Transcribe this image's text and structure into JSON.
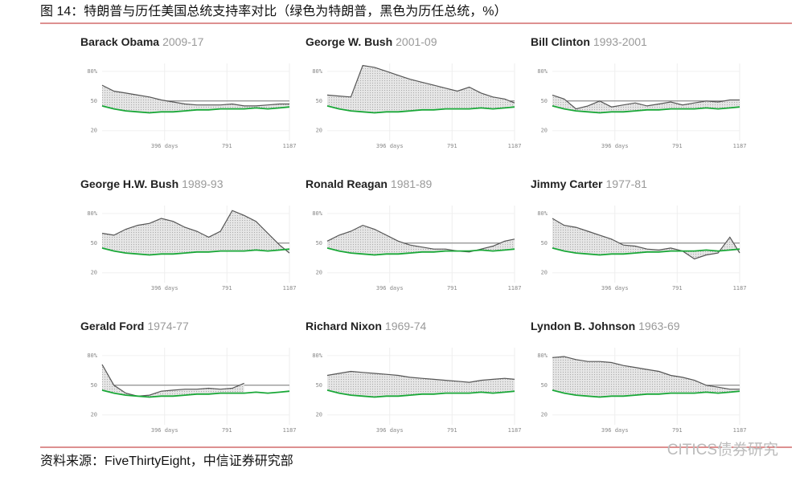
{
  "header": {
    "title": "图 14：特朗普与历任美国总统支持率对比（绿色为特朗普，黑色为历任总统，%）"
  },
  "source": "资料来源：FiveThirtyEight，中信证券研究部",
  "watermark": "CITICS债券研究",
  "chart_data": [
    {
      "type": "line",
      "title": "Barack Obama",
      "subtitle": "2009-17",
      "x": [
        0,
        75,
        150,
        225,
        300,
        375,
        450,
        525,
        600,
        675,
        750,
        825,
        900,
        975,
        1050,
        1125,
        1187
      ],
      "xlim": [
        0,
        1187
      ],
      "xticks": [
        {
          "value": 396,
          "label": "396 days"
        },
        791,
        1187
      ],
      "ylim": [
        10,
        88
      ],
      "yticks": [
        {
          "value": 80,
          "label": "80%"
        },
        50,
        20
      ],
      "hline": 50,
      "grid": true,
      "series": [
        {
          "color": "#555555",
          "values": [
            66,
            60,
            58,
            56,
            54,
            51,
            49,
            47,
            46,
            46,
            46,
            47,
            45,
            45,
            46,
            47,
            47
          ]
        },
        {
          "color": "#1aa838",
          "values": [
            45,
            42,
            40,
            39,
            38,
            39,
            39,
            40,
            41,
            41,
            42,
            42,
            42,
            43,
            42,
            43,
            44
          ]
        }
      ]
    },
    {
      "type": "line",
      "title": "George W. Bush",
      "subtitle": "2001-09",
      "x": [
        0,
        75,
        150,
        225,
        300,
        375,
        450,
        525,
        600,
        675,
        750,
        825,
        900,
        975,
        1050,
        1125,
        1187
      ],
      "xlim": [
        0,
        1187
      ],
      "xticks": [
        {
          "value": 396,
          "label": "396 days"
        },
        791,
        1187
      ],
      "ylim": [
        10,
        88
      ],
      "yticks": [
        {
          "value": 80,
          "label": "80%"
        },
        50,
        20
      ],
      "hline": 50,
      "grid": true,
      "series": [
        {
          "color": "#555555",
          "values": [
            56,
            55,
            54,
            86,
            84,
            80,
            76,
            72,
            69,
            66,
            63,
            60,
            64,
            58,
            54,
            52,
            48
          ]
        },
        {
          "color": "#1aa838",
          "values": [
            45,
            42,
            40,
            39,
            38,
            39,
            39,
            40,
            41,
            41,
            42,
            42,
            42,
            43,
            42,
            43,
            44
          ]
        }
      ]
    },
    {
      "type": "line",
      "title": "Bill Clinton",
      "subtitle": "1993-2001",
      "x": [
        0,
        75,
        150,
        225,
        300,
        375,
        450,
        525,
        600,
        675,
        750,
        825,
        900,
        975,
        1050,
        1125,
        1187
      ],
      "xlim": [
        0,
        1187
      ],
      "xticks": [
        {
          "value": 396,
          "label": "396 days"
        },
        791,
        1187
      ],
      "ylim": [
        10,
        88
      ],
      "yticks": [
        {
          "value": 80,
          "label": "80%"
        },
        50,
        20
      ],
      "hline": 50,
      "grid": true,
      "series": [
        {
          "color": "#555555",
          "values": [
            56,
            52,
            42,
            45,
            50,
            44,
            46,
            48,
            45,
            47,
            49,
            46,
            48,
            50,
            49,
            51,
            51
          ]
        },
        {
          "color": "#1aa838",
          "values": [
            45,
            42,
            40,
            39,
            38,
            39,
            39,
            40,
            41,
            41,
            42,
            42,
            42,
            43,
            42,
            43,
            44
          ]
        }
      ]
    },
    {
      "type": "line",
      "title": "George H.W. Bush",
      "subtitle": "1989-93",
      "x": [
        0,
        75,
        150,
        225,
        300,
        375,
        450,
        525,
        600,
        675,
        750,
        825,
        900,
        975,
        1050,
        1125,
        1187
      ],
      "xlim": [
        0,
        1187
      ],
      "xticks": [
        {
          "value": 396,
          "label": "396 days"
        },
        791,
        1187
      ],
      "ylim": [
        10,
        88
      ],
      "yticks": [
        {
          "value": 80,
          "label": "80%"
        },
        50,
        20
      ],
      "hline": 50,
      "grid": true,
      "series": [
        {
          "color": "#555555",
          "values": [
            60,
            58,
            64,
            68,
            70,
            75,
            72,
            66,
            62,
            56,
            62,
            83,
            78,
            72,
            60,
            48,
            40
          ]
        },
        {
          "color": "#1aa838",
          "values": [
            45,
            42,
            40,
            39,
            38,
            39,
            39,
            40,
            41,
            41,
            42,
            42,
            42,
            43,
            42,
            43,
            44
          ]
        }
      ]
    },
    {
      "type": "line",
      "title": "Ronald Reagan",
      "subtitle": "1981-89",
      "x": [
        0,
        75,
        150,
        225,
        300,
        375,
        450,
        525,
        600,
        675,
        750,
        825,
        900,
        975,
        1050,
        1125,
        1187
      ],
      "xlim": [
        0,
        1187
      ],
      "xticks": [
        {
          "value": 396,
          "label": "396 days"
        },
        791,
        1187
      ],
      "ylim": [
        10,
        88
      ],
      "yticks": [
        {
          "value": 80,
          "label": "80%"
        },
        50,
        20
      ],
      "hline": 50,
      "grid": true,
      "series": [
        {
          "color": "#555555",
          "values": [
            52,
            58,
            62,
            68,
            64,
            58,
            52,
            48,
            46,
            44,
            44,
            42,
            41,
            44,
            47,
            52,
            54
          ]
        },
        {
          "color": "#1aa838",
          "values": [
            45,
            42,
            40,
            39,
            38,
            39,
            39,
            40,
            41,
            41,
            42,
            42,
            42,
            43,
            42,
            43,
            44
          ]
        }
      ]
    },
    {
      "type": "line",
      "title": "Jimmy Carter",
      "subtitle": "1977-81",
      "x": [
        0,
        75,
        150,
        225,
        300,
        375,
        450,
        525,
        600,
        675,
        750,
        825,
        900,
        975,
        1050,
        1125,
        1187
      ],
      "xlim": [
        0,
        1187
      ],
      "xticks": [
        {
          "value": 396,
          "label": "396 days"
        },
        791,
        1187
      ],
      "ylim": [
        10,
        88
      ],
      "yticks": [
        {
          "value": 80,
          "label": "80%"
        },
        50,
        20
      ],
      "hline": 50,
      "grid": true,
      "series": [
        {
          "color": "#555555",
          "values": [
            75,
            68,
            66,
            62,
            58,
            54,
            48,
            47,
            44,
            43,
            45,
            42,
            34,
            38,
            40,
            56,
            40
          ]
        },
        {
          "color": "#1aa838",
          "values": [
            45,
            42,
            40,
            39,
            38,
            39,
            39,
            40,
            41,
            41,
            42,
            42,
            42,
            43,
            42,
            43,
            44
          ]
        }
      ]
    },
    {
      "type": "line",
      "title": "Gerald Ford",
      "subtitle": "1974-77",
      "x": [
        0,
        75,
        150,
        225,
        300,
        375,
        450,
        525,
        600,
        675,
        750,
        825,
        900,
        975,
        1050,
        1125,
        1187
      ],
      "xlim": [
        0,
        1187
      ],
      "xticks": [
        {
          "value": 396,
          "label": "396 days"
        },
        791,
        1187
      ],
      "ylim": [
        10,
        88
      ],
      "yticks": [
        {
          "value": 80,
          "label": "80%"
        },
        50,
        20
      ],
      "hline": 50,
      "grid": true,
      "series": [
        {
          "color": "#555555",
          "values": [
            71,
            50,
            42,
            39,
            40,
            44,
            45,
            46,
            46,
            47,
            46,
            47,
            52,
            null,
            null,
            null,
            null
          ]
        },
        {
          "color": "#1aa838",
          "values": [
            45,
            42,
            40,
            39,
            38,
            39,
            39,
            40,
            41,
            41,
            42,
            42,
            42,
            43,
            42,
            43,
            44
          ]
        }
      ]
    },
    {
      "type": "line",
      "title": "Richard Nixon",
      "subtitle": "1969-74",
      "x": [
        0,
        75,
        150,
        225,
        300,
        375,
        450,
        525,
        600,
        675,
        750,
        825,
        900,
        975,
        1050,
        1125,
        1187
      ],
      "xlim": [
        0,
        1187
      ],
      "xticks": [
        {
          "value": 396,
          "label": "396 days"
        },
        791,
        1187
      ],
      "ylim": [
        10,
        88
      ],
      "yticks": [
        {
          "value": 80,
          "label": "80%"
        },
        50,
        20
      ],
      "hline": 50,
      "grid": true,
      "series": [
        {
          "color": "#555555",
          "values": [
            60,
            62,
            64,
            63,
            62,
            61,
            60,
            58,
            57,
            56,
            55,
            54,
            53,
            55,
            56,
            57,
            56
          ]
        },
        {
          "color": "#1aa838",
          "values": [
            45,
            42,
            40,
            39,
            38,
            39,
            39,
            40,
            41,
            41,
            42,
            42,
            42,
            43,
            42,
            43,
            44
          ]
        }
      ]
    },
    {
      "type": "line",
      "title": "Lyndon B. Johnson",
      "subtitle": "1963-69",
      "x": [
        0,
        75,
        150,
        225,
        300,
        375,
        450,
        525,
        600,
        675,
        750,
        825,
        900,
        975,
        1050,
        1125,
        1187
      ],
      "xlim": [
        0,
        1187
      ],
      "xticks": [
        {
          "value": 396,
          "label": "396 days"
        },
        791,
        1187
      ],
      "ylim": [
        10,
        88
      ],
      "yticks": [
        {
          "value": 80,
          "label": "80%"
        },
        50,
        20
      ],
      "hline": 50,
      "grid": true,
      "series": [
        {
          "color": "#555555",
          "values": [
            78,
            79,
            76,
            74,
            74,
            73,
            70,
            68,
            66,
            64,
            60,
            58,
            55,
            50,
            48,
            46,
            46
          ]
        },
        {
          "color": "#1aa838",
          "values": [
            45,
            42,
            40,
            39,
            38,
            39,
            39,
            40,
            41,
            41,
            42,
            42,
            42,
            43,
            42,
            43,
            44
          ]
        }
      ]
    }
  ]
}
